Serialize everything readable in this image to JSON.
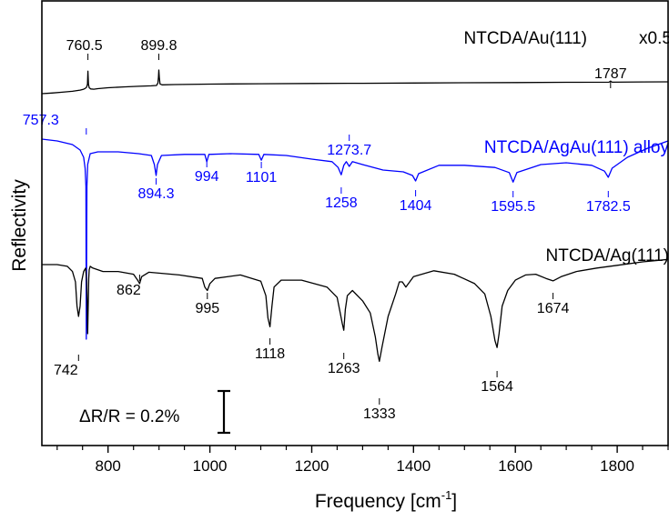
{
  "chart_data": {
    "type": "line",
    "xlabel_main": "Frequency [cm",
    "xlabel_sup": "-1",
    "xlabel_tail": "]",
    "ylabel": "Reflectivity",
    "xlim": [
      670,
      1900
    ],
    "x_ticks": [
      800,
      1000,
      1200,
      1400,
      1600,
      1800
    ],
    "x_tick_labels": [
      "800",
      "1000",
      "1200",
      "1400",
      "1600",
      "1800"
    ],
    "x_minor_step": 50,
    "grid": false,
    "scale_bar": {
      "label": "ΔR/R = 0.2%"
    },
    "series": [
      {
        "name": "NTCDA/Au(111)",
        "factor_label": "x0.5",
        "color": "#000000",
        "x": [
          670,
          690,
          710,
          730,
          745,
          752,
          755,
          758,
          759.5,
          760.5,
          761.5,
          763,
          766,
          772,
          780,
          800,
          830,
          860,
          885,
          895,
          898,
          899,
          899.8,
          900.6,
          902,
          906,
          930,
          1000,
          1100,
          1200,
          1300,
          1400,
          1500,
          1600,
          1700,
          1784,
          1786,
          1787,
          1788,
          1790,
          1850,
          1900
        ],
        "y": [
          0,
          0.05,
          0.12,
          0.2,
          0.3,
          0.38,
          0.44,
          0.55,
          0.8,
          1.9,
          0.8,
          0.5,
          0.4,
          0.38,
          0.42,
          0.5,
          0.57,
          0.62,
          0.66,
          0.69,
          0.9,
          1.4,
          2.0,
          1.4,
          0.82,
          0.75,
          0.77,
          0.81,
          0.84,
          0.86,
          0.88,
          0.9,
          0.92,
          0.94,
          0.96,
          0.97,
          1.03,
          1.06,
          1.03,
          0.97,
          0.99,
          1.0
        ],
        "peaks": [
          {
            "x": 760.5,
            "label": "760.5"
          },
          {
            "x": 899.8,
            "label": "899.8"
          },
          {
            "x": 1787,
            "label": "1787"
          }
        ]
      },
      {
        "name": "NTCDA/AgAu(111) alloy",
        "color": "#0000ff",
        "x": [
          670,
          700,
          730,
          745,
          752,
          755,
          756.5,
          757.3,
          758.5,
          760,
          765,
          780,
          820,
          860,
          885,
          891,
          894.3,
          897,
          905,
          950,
          990,
          994,
          998,
          1040,
          1096,
          1101,
          1106,
          1150,
          1200,
          1240,
          1252,
          1258,
          1263,
          1268,
          1273.7,
          1280,
          1300,
          1340,
          1380,
          1398,
          1404,
          1410,
          1450,
          1500,
          1560,
          1588,
          1595.5,
          1603,
          1650,
          1700,
          1750,
          1775,
          1782.5,
          1790,
          1820,
          1860,
          1900
        ],
        "y": [
          0,
          -0.05,
          -0.15,
          -0.3,
          -0.5,
          -0.8,
          -1.3,
          -5.5,
          -1.3,
          -0.7,
          -0.4,
          -0.35,
          -0.35,
          -0.4,
          -0.45,
          -0.7,
          -1.0,
          -0.7,
          -0.45,
          -0.42,
          -0.42,
          -0.62,
          -0.42,
          -0.4,
          -0.42,
          -0.58,
          -0.42,
          -0.45,
          -0.55,
          -0.62,
          -0.78,
          -0.98,
          -0.72,
          -0.62,
          -0.75,
          -0.62,
          -0.7,
          -0.85,
          -0.9,
          -1.0,
          -1.15,
          -0.95,
          -0.72,
          -0.72,
          -0.78,
          -0.92,
          -1.18,
          -0.92,
          -0.7,
          -0.65,
          -0.72,
          -0.88,
          -1.05,
          -0.8,
          -0.5,
          -0.25,
          -0.05
        ],
        "peaks": [
          {
            "x": 757.3,
            "label": "757.3"
          },
          {
            "x": 894.3,
            "label": "894.3"
          },
          {
            "x": 994,
            "label": "994"
          },
          {
            "x": 1101,
            "label": "1101"
          },
          {
            "x": 1258,
            "label": "1258"
          },
          {
            "x": 1273.7,
            "label": "1273.7"
          },
          {
            "x": 1404,
            "label": "1404"
          },
          {
            "x": 1595.5,
            "label": "1595.5"
          },
          {
            "x": 1782.5,
            "label": "1782.5"
          }
        ]
      },
      {
        "name": "NTCDA/Ag(111)",
        "color": "#000000",
        "x": [
          670,
          700,
          720,
          730,
          736,
          739,
          742,
          745,
          748,
          752,
          756,
          758,
          759,
          760,
          761,
          762,
          763,
          765,
          770,
          790,
          820,
          850,
          858,
          862,
          866,
          880,
          940,
          985,
          990,
          995,
          1000,
          1010,
          1060,
          1100,
          1110,
          1114,
          1118,
          1122,
          1126,
          1140,
          1180,
          1230,
          1250,
          1256,
          1260,
          1263,
          1266,
          1270,
          1280,
          1300,
          1315,
          1325,
          1330,
          1333,
          1338,
          1350,
          1365,
          1372,
          1378,
          1385,
          1400,
          1440,
          1480,
          1520,
          1540,
          1552,
          1560,
          1564,
          1568,
          1574,
          1585,
          1600,
          1620,
          1640,
          1660,
          1674,
          1690,
          1720,
          1760,
          1800,
          1850,
          1900
        ],
        "y": [
          0,
          0,
          -0.05,
          -0.2,
          -0.5,
          -1.2,
          -1.5,
          -1.2,
          -0.5,
          -0.2,
          -0.1,
          -0.5,
          -1.2,
          -2.0,
          -1.2,
          -0.4,
          -0.15,
          -0.05,
          -0.1,
          -0.2,
          -0.2,
          -0.28,
          -0.45,
          -0.55,
          -0.35,
          -0.22,
          -0.3,
          -0.4,
          -0.65,
          -0.75,
          -0.55,
          -0.4,
          -0.3,
          -0.48,
          -0.9,
          -1.55,
          -1.8,
          -1.2,
          -0.65,
          -0.45,
          -0.45,
          -0.65,
          -0.95,
          -1.4,
          -1.7,
          -1.9,
          -1.3,
          -0.9,
          -0.75,
          -1.05,
          -1.4,
          -2.1,
          -2.6,
          -2.8,
          -2.4,
          -1.5,
          -0.85,
          -0.5,
          -0.5,
          -0.65,
          -0.35,
          -0.18,
          -0.28,
          -0.55,
          -0.85,
          -1.5,
          -2.2,
          -2.4,
          -2.0,
          -1.2,
          -0.75,
          -0.45,
          -0.3,
          -0.28,
          -0.4,
          -0.47,
          -0.35,
          -0.2,
          -0.1,
          -0.02,
          0.08,
          0.15
        ],
        "peaks": [
          {
            "x": 742,
            "label": "742"
          },
          {
            "x": 862,
            "label": "862"
          },
          {
            "x": 995,
            "label": "995"
          },
          {
            "x": 1118,
            "label": "1118"
          },
          {
            "x": 1263,
            "label": "1263"
          },
          {
            "x": 1333,
            "label": "1333"
          },
          {
            "x": 1564,
            "label": "1564"
          },
          {
            "x": 1674,
            "label": "1674"
          }
        ]
      }
    ]
  }
}
